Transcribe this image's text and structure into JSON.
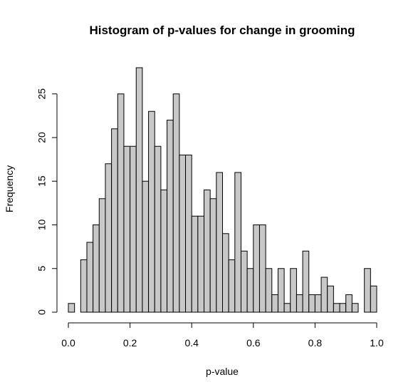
{
  "chart_data": {
    "type": "bar",
    "title": "Histogram of p-values for change in grooming",
    "xlabel": "p-value",
    "ylabel": "Frequency",
    "xlim": [
      0,
      1
    ],
    "ylim": [
      0,
      28
    ],
    "bin_width": 0.02,
    "bin_start": 0,
    "values": [
      1,
      0,
      6,
      8,
      10,
      13,
      17,
      21,
      25,
      19,
      19,
      28,
      15,
      23,
      19,
      14,
      22,
      25,
      18,
      18,
      11,
      11,
      14,
      13,
      16,
      9,
      6,
      16,
      7,
      5,
      10,
      10,
      5,
      2,
      5,
      1,
      5,
      2,
      7,
      2,
      2,
      4,
      3,
      1,
      1,
      2,
      1,
      0,
      5,
      3
    ],
    "x_ticks": [
      0,
      0.2,
      0.4,
      0.6,
      0.8,
      1
    ],
    "x_tick_labels": [
      "0.0",
      "0.2",
      "0.4",
      "0.6",
      "0.8",
      "1.0"
    ],
    "y_ticks": [
      0,
      5,
      10,
      15,
      20,
      25
    ],
    "y_tick_labels": [
      "0",
      "5",
      "10",
      "15",
      "20",
      "25"
    ],
    "bar_color": "#c8c8c8",
    "grid": false,
    "legend": "none"
  }
}
